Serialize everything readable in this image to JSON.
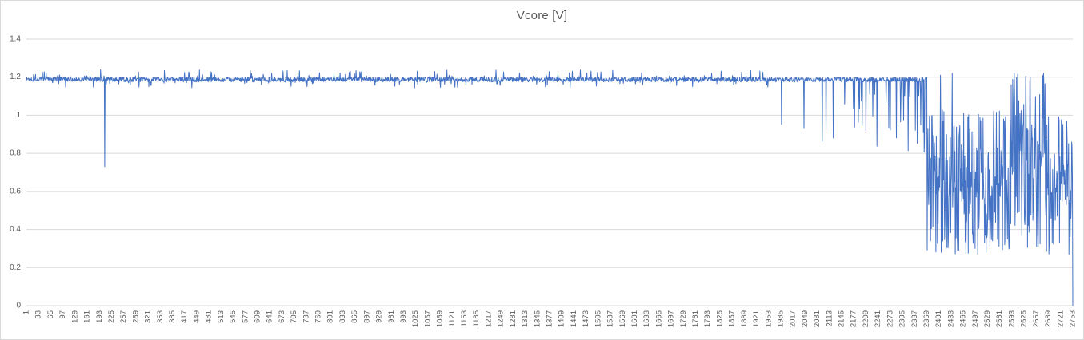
{
  "chart_data": {
    "type": "line",
    "title": "Vcore [V]",
    "series_name": "Vcore",
    "ylim": [
      0,
      1.4
    ],
    "y_tick_step": 0.2,
    "y_ticks": [
      "0",
      "0.2",
      "0.4",
      "0.6",
      "0.8",
      "1",
      "1.2",
      "1.4"
    ],
    "x_range": [
      1,
      2753
    ],
    "x_tick_step": 32,
    "x_ticks": [
      1,
      33,
      65,
      97,
      129,
      161,
      193,
      225,
      257,
      289,
      321,
      353,
      385,
      417,
      449,
      481,
      513,
      545,
      577,
      609,
      641,
      673,
      705,
      737,
      769,
      801,
      833,
      865,
      897,
      929,
      961,
      993,
      1025,
      1057,
      1089,
      1121,
      1153,
      1185,
      1217,
      1249,
      1281,
      1313,
      1345,
      1377,
      1409,
      1441,
      1473,
      1505,
      1537,
      1569,
      1601,
      1633,
      1665,
      1697,
      1729,
      1761,
      1793,
      1825,
      1857,
      1889,
      1921,
      1953,
      1985,
      2017,
      2049,
      2081,
      2113,
      2145,
      2177,
      2209,
      2241,
      2273,
      2305,
      2337,
      2369,
      2401,
      2433,
      2465,
      2497,
      2529,
      2561,
      2593,
      2625,
      2657,
      2689,
      2721,
      2753
    ],
    "grid": "horizontal",
    "legend": "none",
    "colors": {
      "line": "#4472C4",
      "gridline": "#d9d9d9",
      "axis_text": "#595959",
      "title_text": "#595959",
      "background": "#ffffff",
      "border": "#d9d9d9"
    },
    "seed": 1337,
    "segments": [
      {
        "from": 1,
        "to": 206,
        "type": "noise",
        "base": 1.19,
        "jitter": 0.013,
        "spike_prob": 0.07,
        "spike_up": 0.05,
        "spike_down": 0.055
      },
      {
        "from": 207,
        "to": 207,
        "type": "point",
        "value": 0.73
      },
      {
        "from": 208,
        "to": 1959,
        "type": "noise",
        "base": 1.188,
        "jitter": 0.013,
        "spike_prob": 0.07,
        "spike_up": 0.05,
        "spike_down": 0.045
      },
      {
        "from": 1960,
        "to": 2369,
        "type": "noise_dropouts",
        "base": 1.188,
        "jitter": 0.013,
        "dropout_prob": 0.07,
        "dropout_lo": 0.8,
        "dropout_hi": 1.12
      },
      {
        "from": 2370,
        "to": 2589,
        "type": "chaos",
        "lo": 0.27,
        "hi": 1.03
      },
      {
        "from": 2590,
        "to": 2680,
        "type": "chaos",
        "lo": 0.3,
        "hi": 1.23
      },
      {
        "from": 2681,
        "to": 2752,
        "type": "chaos",
        "lo": 0.27,
        "hi": 1.0
      },
      {
        "from": 2753,
        "to": 2753,
        "type": "point",
        "value": 0.0
      }
    ],
    "events": [
      {
        "x": 2405,
        "value": 1.21
      },
      {
        "x": 2436,
        "value": 1.22
      }
    ]
  }
}
